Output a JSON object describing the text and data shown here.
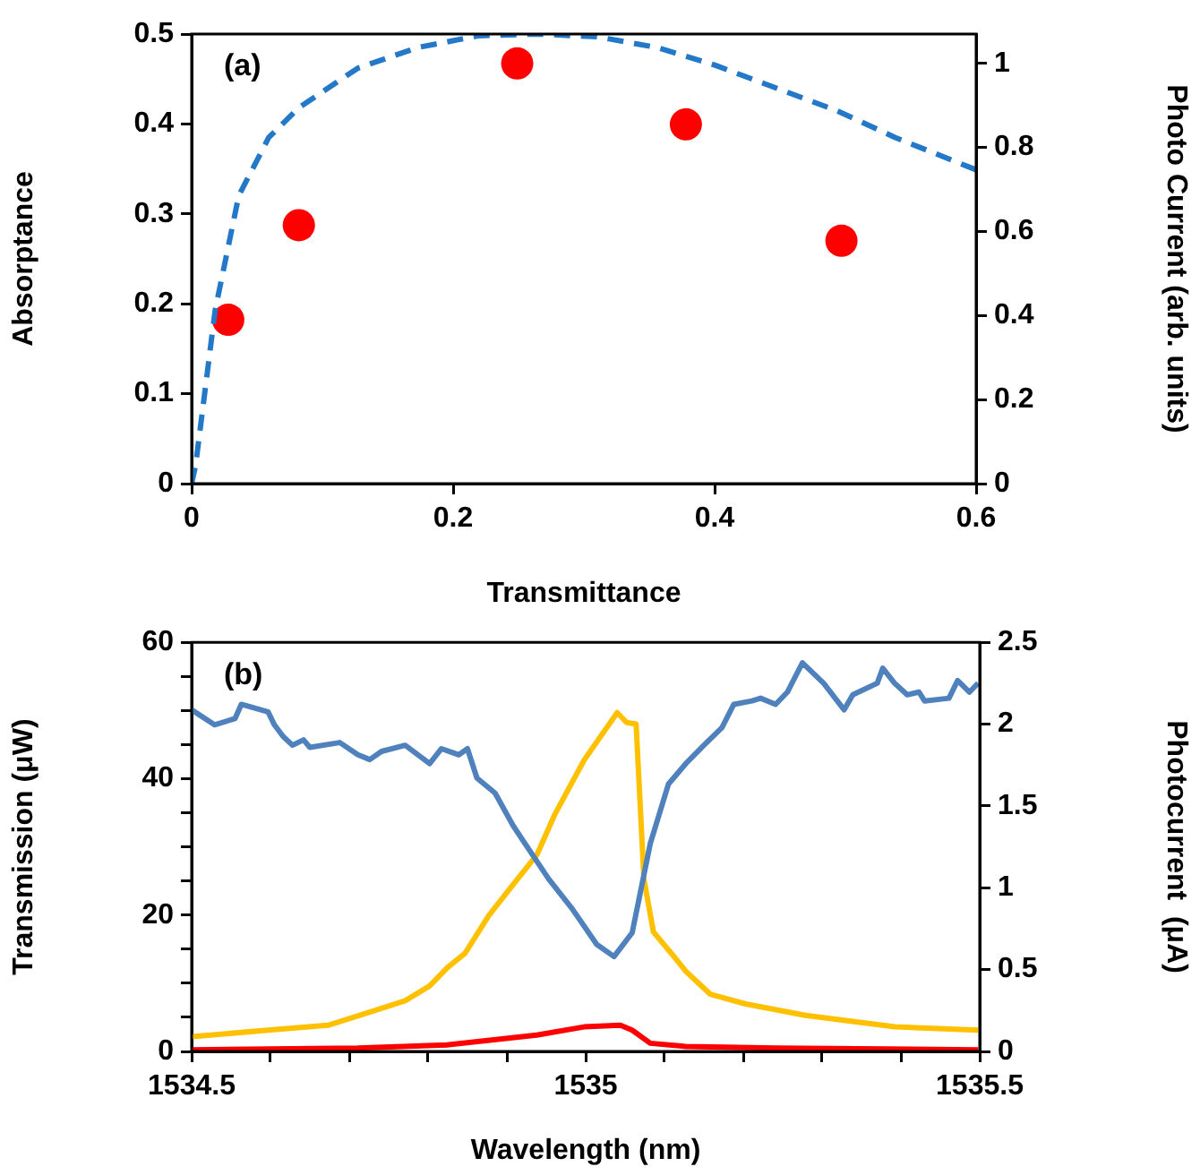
{
  "chart_data": [
    {
      "type": "line",
      "xlabel": "Transmittance",
      "ylabel": "Absorptance",
      "y2label": "Photo Current (arb. units)",
      "annotations": [
        "(a)"
      ],
      "legend": false,
      "grid": false,
      "xlim": [
        0,
        0.6
      ],
      "xticks": [
        0,
        0.2,
        0.4,
        0.6
      ],
      "ylim": [
        0,
        0.5
      ],
      "yticks": [
        0,
        0.1,
        0.2,
        0.3,
        0.4,
        0.5
      ],
      "y2lim": [
        0,
        1.07
      ],
      "y2ticks": [
        0,
        0.2,
        0.4,
        0.6,
        0.8,
        1
      ],
      "series": [
        {
          "type": "line",
          "color": "#2478c8",
          "line_style": "dashed",
          "marker": "none",
          "x": [
            0,
            0.003,
            0.018,
            0.036,
            0.059,
            0.082,
            0.127,
            0.173,
            0.219,
            0.265,
            0.31,
            0.356,
            0.401,
            0.447,
            0.493,
            0.538,
            0.6
          ],
          "values": [
            0,
            0.02,
            0.193,
            0.32,
            0.385,
            0.418,
            0.462,
            0.485,
            0.498,
            0.5,
            0.497,
            0.485,
            0.465,
            0.44,
            0.415,
            0.385,
            0.349
          ]
        },
        {
          "type": "scatter",
          "color": "#ff0000",
          "marker": "circle",
          "axis": "y2",
          "x": [
            0.028,
            0.082,
            0.249,
            0.378,
            0.497
          ],
          "values": [
            0.39,
            0.615,
            1.0,
            0.855,
            0.578
          ]
        }
      ]
    },
    {
      "type": "line",
      "xlabel": "Wavelength (nm)",
      "ylabel": "Transmission (μW)",
      "y2label": "Photocurrent  (μA)",
      "annotations": [
        "(b)"
      ],
      "legend": false,
      "grid": false,
      "xlim": [
        1534.5,
        1535.5
      ],
      "xticks": [
        1534.5,
        {
          "value": 1534.6,
          "label": null
        },
        {
          "value": 1534.7,
          "label": null
        },
        {
          "value": 1534.8,
          "label": null
        },
        {
          "value": 1534.9,
          "label": null
        },
        1535,
        {
          "value": 1535.1,
          "label": null
        },
        {
          "value": 1535.2,
          "label": null
        },
        {
          "value": 1535.3,
          "label": null
        },
        {
          "value": 1535.4,
          "label": null
        },
        1535.5
      ],
      "ylim": [
        0,
        60
      ],
      "yticks": [
        0,
        {
          "value": 5,
          "label": null
        },
        {
          "value": 10,
          "label": null
        },
        {
          "value": 15,
          "label": null
        },
        20,
        {
          "value": 25,
          "label": null
        },
        {
          "value": 30,
          "label": null
        },
        {
          "value": 35,
          "label": null
        },
        40,
        {
          "value": 45,
          "label": null
        },
        {
          "value": 50,
          "label": null
        },
        {
          "value": 55,
          "label": null
        },
        60
      ],
      "y2lim": [
        0,
        2.5
      ],
      "y2ticks": [
        0,
        0.5,
        1,
        1.5,
        2,
        2.5
      ],
      "series": [
        {
          "color": "#4f81bd",
          "x": [
            1534.5,
            1534.529,
            1534.555,
            1534.563,
            1534.597,
            1534.605,
            1534.616,
            1534.628,
            1534.642,
            1534.65,
            1534.688,
            1534.711,
            1534.726,
            1534.741,
            1534.771,
            1534.802,
            1534.817,
            1534.839,
            1534.85,
            1534.862,
            1534.885,
            1534.908,
            1534.923,
            1534.953,
            1534.983,
            1535.014,
            1535.036,
            1535.059,
            1535.082,
            1535.105,
            1535.127,
            1535.15,
            1535.173,
            1535.188,
            1535.211,
            1535.222,
            1535.241,
            1535.256,
            1535.275,
            1535.302,
            1535.328,
            1535.339,
            1535.37,
            1535.377,
            1535.392,
            1535.408,
            1535.423,
            1535.43,
            1535.461,
            1535.472,
            1535.487,
            1535.498
          ],
          "values": [
            50.1,
            47.9,
            48.8,
            50.9,
            49.8,
            47.9,
            46.2,
            44.9,
            45.7,
            44.6,
            45.3,
            43.5,
            42.8,
            44.0,
            44.9,
            42.2,
            44.4,
            43.5,
            44.4,
            40.1,
            37.9,
            33.1,
            30.5,
            25.3,
            20.9,
            15.7,
            13.9,
            17.4,
            30.5,
            39.2,
            42.2,
            44.9,
            47.5,
            50.9,
            51.4,
            51.8,
            50.9,
            52.7,
            57.0,
            54.0,
            50.1,
            52.3,
            54.0,
            56.2,
            54.0,
            52.3,
            52.7,
            51.4,
            51.8,
            54.4,
            52.7,
            54.0
          ]
        },
        {
          "color": "#ffc000",
          "axis": "y2",
          "x": [
            1534.5,
            1534.597,
            1534.673,
            1534.726,
            1534.771,
            1534.802,
            1534.824,
            1534.847,
            1534.877,
            1534.908,
            1534.938,
            1534.961,
            1534.998,
            1535.04,
            1535.052,
            1535.064,
            1535.074,
            1535.086,
            1535.112,
            1535.127,
            1535.158,
            1535.203,
            1535.279,
            1535.392,
            1535.498
          ],
          "values": [
            0.09,
            0.13,
            0.16,
            0.24,
            0.31,
            0.4,
            0.51,
            0.6,
            0.83,
            1.02,
            1.2,
            1.45,
            1.78,
            2.07,
            2.01,
            2.0,
            1.05,
            0.73,
            0.58,
            0.49,
            0.35,
            0.29,
            0.22,
            0.15,
            0.13
          ]
        },
        {
          "color": "#ff0000",
          "axis": "y2",
          "x": [
            1534.5,
            1534.711,
            1534.824,
            1534.938,
            1534.998,
            1535.044,
            1535.059,
            1535.082,
            1535.127,
            1535.241,
            1535.498
          ],
          "values": [
            0.01,
            0.02,
            0.04,
            0.1,
            0.15,
            0.16,
            0.13,
            0.05,
            0.03,
            0.02,
            0.01
          ]
        }
      ]
    }
  ]
}
